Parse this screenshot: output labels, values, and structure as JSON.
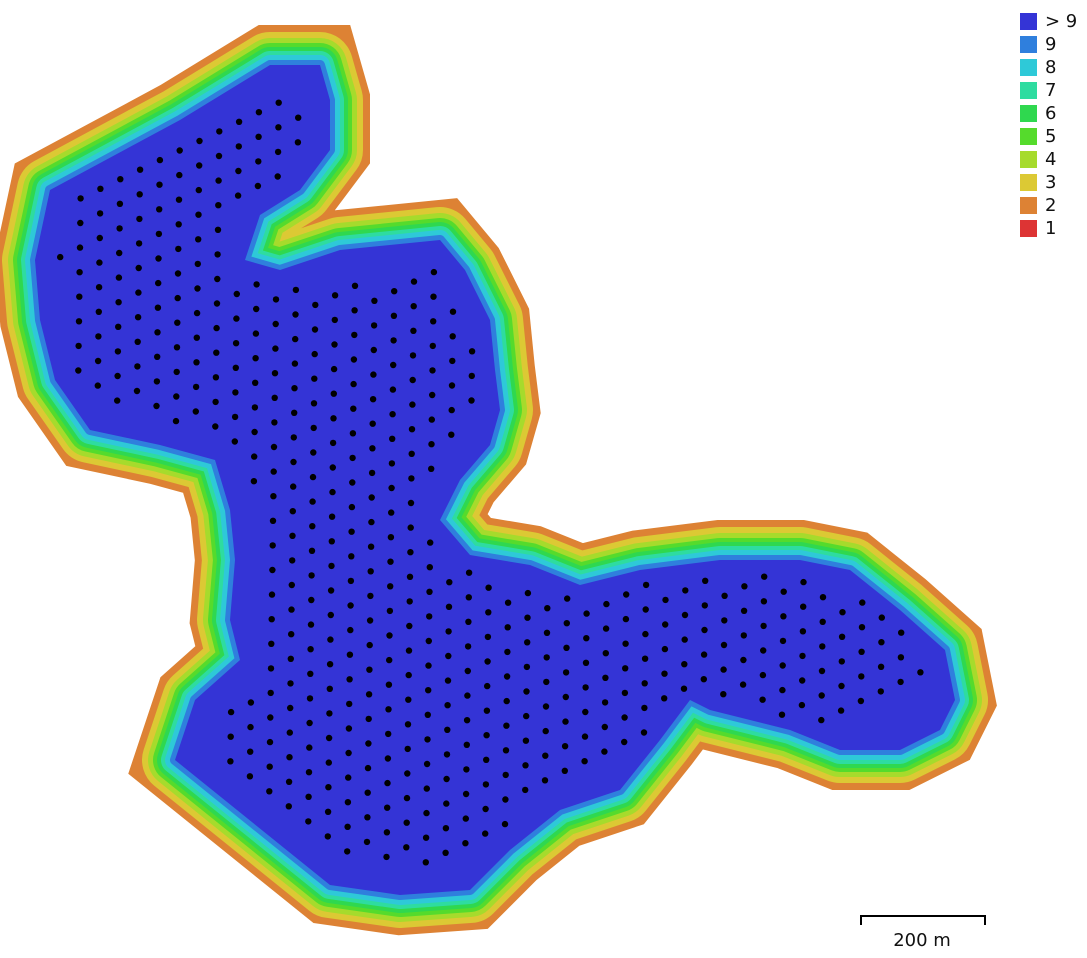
{
  "legend": {
    "items": [
      {
        "label": "> 9",
        "color": "#3434d6"
      },
      {
        "label": "9",
        "color": "#2f7fdd"
      },
      {
        "label": "8",
        "color": "#2ec9d8"
      },
      {
        "label": "7",
        "color": "#2edca0"
      },
      {
        "label": "6",
        "color": "#2fd84f"
      },
      {
        "label": "5",
        "color": "#55db2c"
      },
      {
        "label": "4",
        "color": "#a6db2c"
      },
      {
        "label": "3",
        "color": "#dcc934"
      },
      {
        "label": "2",
        "color": "#dd8234"
      },
      {
        "label": "1",
        "color": "#dd3434"
      }
    ]
  },
  "scale_bar": {
    "label": "200 m"
  },
  "colors": {
    "background": "#ffffff",
    "camera_point": "#000000"
  }
}
